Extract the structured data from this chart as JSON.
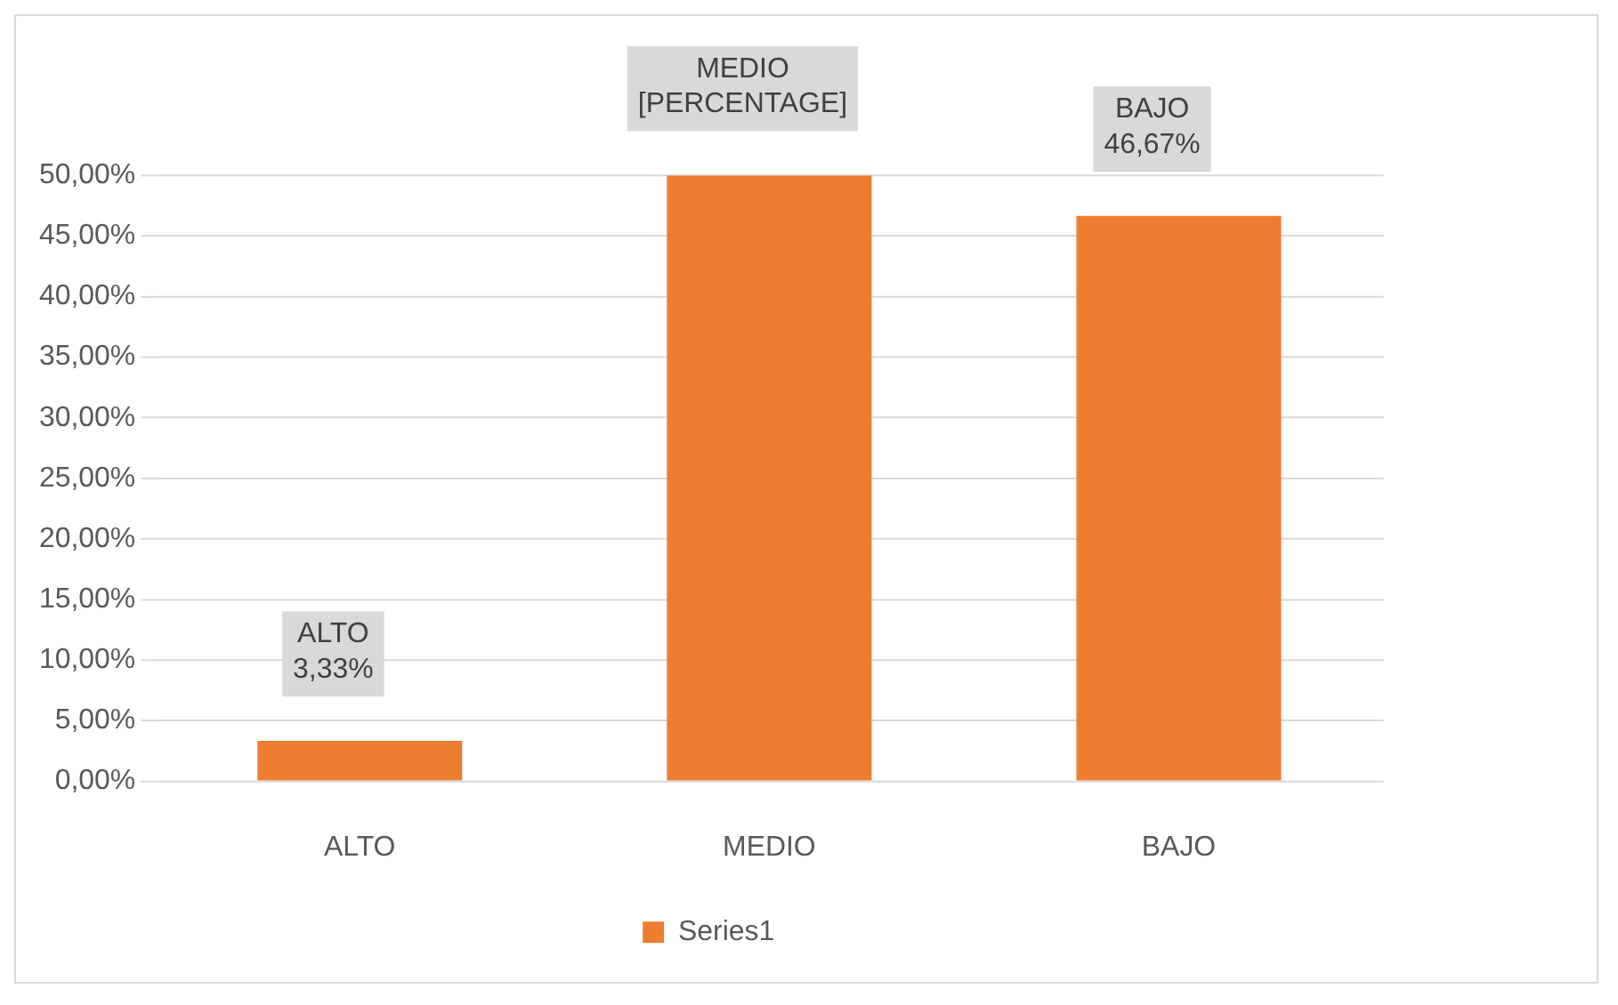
{
  "chart_data": {
    "type": "bar",
    "categories": [
      "ALTO",
      "MEDIO",
      "BAJO"
    ],
    "series": [
      {
        "name": "Series1",
        "color": "#ed7d31",
        "values": [
          3.33,
          50,
          46.67
        ],
        "value_labels": [
          "3,33%",
          "[PERCENTAGE]",
          "46,67%"
        ]
      }
    ],
    "ylim": [
      0,
      50
    ],
    "yticks": [
      {
        "value": 0,
        "label": "0,00%"
      },
      {
        "value": 5,
        "label": "5,00%"
      },
      {
        "value": 10,
        "label": "10,00%"
      },
      {
        "value": 15,
        "label": "15,00%"
      },
      {
        "value": 20,
        "label": "20,00%"
      },
      {
        "value": 25,
        "label": "25,00%"
      },
      {
        "value": 30,
        "label": "30,00%"
      },
      {
        "value": 35,
        "label": "35,00%"
      },
      {
        "value": 40,
        "label": "40,00%"
      },
      {
        "value": 45,
        "label": "45,00%"
      },
      {
        "value": 50,
        "label": "50,00%"
      }
    ],
    "grid": "y",
    "legend": "bottom"
  }
}
